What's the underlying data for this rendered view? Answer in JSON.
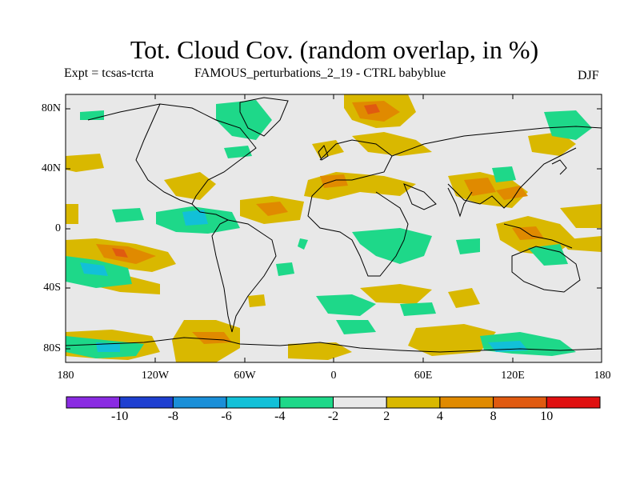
{
  "title": "Tot. Cloud Cov. (random overlap, in %)",
  "experiment": "Expt = tcsas-tcrta",
  "comparison": "FAMOUS_perturbations_2_19 - CTRL babyblue",
  "season": "DJF",
  "lat_labels": [
    "80N",
    "40N",
    "0",
    "40S",
    "80S"
  ],
  "lon_labels": [
    "180",
    "120W",
    "60W",
    "0",
    "60E",
    "120E",
    "180"
  ],
  "colorbar": {
    "labels": [
      "-10",
      "-8",
      "-6",
      "-4",
      "-2",
      "2",
      "4",
      "8",
      "10"
    ],
    "colors": [
      "#8a2be2",
      "#1e3fd0",
      "#1a8fd8",
      "#12c0d8",
      "#1ed889",
      "#e8e8e8",
      "#d9b800",
      "#e08a00",
      "#e05a10",
      "#e01010"
    ]
  },
  "map_colors": {
    "background": "#e8e8e8",
    "pos2": "#d9b800",
    "pos4": "#e08a00",
    "pos8": "#e05a10",
    "neg2": "#1ed889",
    "neg4": "#12c0d8",
    "coast": "#000000"
  }
}
